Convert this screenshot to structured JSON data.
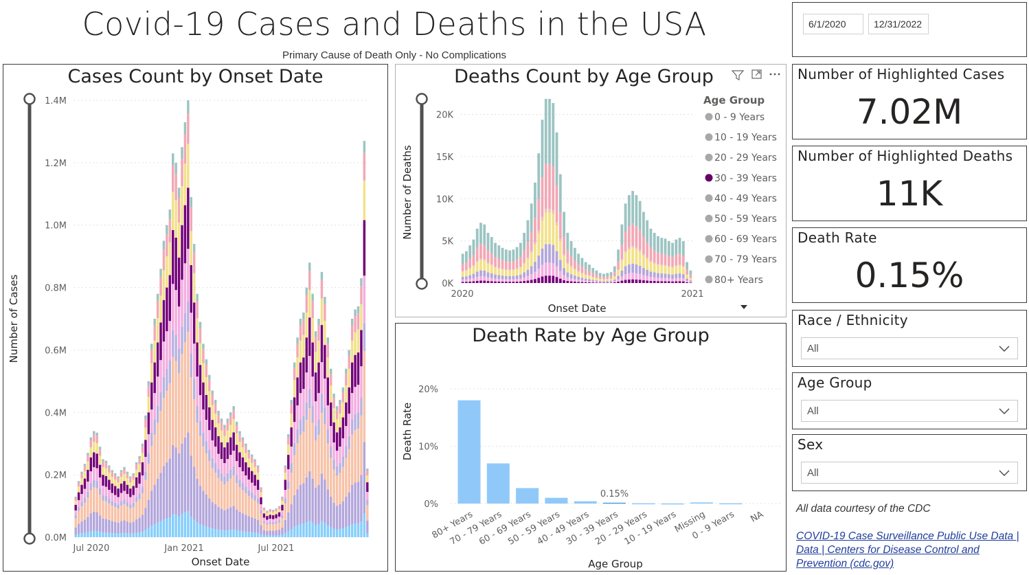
{
  "header": {
    "title": "Covid-19 Cases and Deaths in the USA",
    "subtitle": "Primary Cause of Death Only - No Complications"
  },
  "date_range": {
    "start": "6/1/2020",
    "end": "12/31/2022"
  },
  "cards": [
    {
      "label": "Number of Highlighted Cases",
      "value": "7.02M"
    },
    {
      "label": "Number of Highlighted Deaths",
      "value": "11K"
    },
    {
      "label": "Death Rate",
      "value": "0.15%"
    }
  ],
  "filters": [
    {
      "label": "Race / Ethnicity",
      "value": "All"
    },
    {
      "label": "Age Group",
      "value": "All"
    },
    {
      "label": "Sex",
      "value": "All"
    }
  ],
  "footer": {
    "credit": "All data courtesy of the CDC",
    "link_text": "COVID-19 Case Surveillance Public Use Data | Data | Centers for Disease Control and Prevention (cdc.gov)"
  },
  "icons": [
    "filter-icon",
    "focus-mode-icon",
    "more-options-icon",
    "chevron-down-icon",
    "drill-down-arrow-icon"
  ],
  "colors": {
    "c80": "#87cefa",
    "c70": "#b3a6dc",
    "c60": "#f7c2a8",
    "c50": "#b8b3e0",
    "c40": "#f4aee0",
    "c30": "#73007a",
    "c20": "#f2e189",
    "c10": "#f2a8b5",
    "c0": "#9cc4c2",
    "rate_bar": "#90c9f9",
    "highlight": "#660066",
    "legend_dot": "#a8a8a8"
  },
  "chart_data": [
    {
      "type": "bar",
      "stacked": true,
      "title": "Cases Count by Onset Date",
      "xlabel": "Onset Date",
      "ylabel": "Number of Cases",
      "x_start": "2020-04",
      "x_end": "2022-01",
      "xticks": [
        "Jul 2020",
        "Jan 2021",
        "Jul 2021"
      ],
      "ylim": [
        0,
        1400000
      ],
      "yticks": [
        "0.0M",
        "0.2M",
        "0.4M",
        "0.6M",
        "0.8M",
        "1.0M",
        "1.2M",
        "1.4M"
      ],
      "totals": [
        130000,
        180000,
        210000,
        235000,
        270000,
        320000,
        340000,
        335000,
        290000,
        250000,
        245000,
        230000,
        215000,
        205000,
        195000,
        215000,
        225000,
        210000,
        195000,
        205000,
        240000,
        260000,
        300000,
        390000,
        500000,
        620000,
        700000,
        780000,
        860000,
        950000,
        1000000,
        1050000,
        1230000,
        1200000,
        1120000,
        1250000,
        1330000,
        1400000,
        1090000,
        940000,
        780000,
        690000,
        620000,
        570000,
        520000,
        470000,
        440000,
        405000,
        380000,
        360000,
        380000,
        400000,
        420000,
        370000,
        340000,
        320000,
        300000,
        280000,
        265000,
        250000,
        230000,
        160000,
        95000,
        85000,
        90000,
        88000,
        92000,
        100000,
        130000,
        230000,
        330000,
        440000,
        560000,
        640000,
        700000,
        720000,
        800000,
        880000,
        780000,
        660000,
        700000,
        850000,
        770000,
        640000,
        540000,
        460000,
        420000,
        440000,
        480000,
        540000,
        600000,
        700000,
        730000,
        740000,
        830000,
        1270000,
        220000
      ],
      "highlight_series": "30 - 39 Years",
      "series_order": [
        "80+ Years",
        "70 - 79 Years",
        "60 - 69 Years",
        "50 - 59 Years",
        "40 - 49 Years",
        "30 - 39 Years",
        "20 - 29 Years",
        "10 - 19 Years",
        "0 - 9 Years"
      ],
      "share": [
        0.06,
        0.18,
        0.23,
        0.07,
        0.12,
        0.14,
        0.1,
        0.07,
        0.03
      ]
    },
    {
      "type": "bar",
      "stacked": true,
      "title": "Deaths Count by Age Group",
      "xlabel": "Onset Date",
      "ylabel": "Number of Deaths",
      "x_start": "2020",
      "x_end": "2021",
      "xticks": [
        "2020",
        "2021"
      ],
      "ylim": [
        0,
        22000
      ],
      "yticks": [
        "0K",
        "5K",
        "10K",
        "15K",
        "20K"
      ],
      "legend_title": "Age Group",
      "legend": [
        "0 - 9 Years",
        "10 - 19 Years",
        "20 - 29 Years",
        "30 - 39 Years",
        "40 - 49 Years",
        "50 - 59 Years",
        "60 - 69 Years",
        "70 - 79 Years",
        "80+ Years"
      ],
      "legend_placement": "right",
      "highlight_series": "30 - 39 Years",
      "totals": [
        3500,
        3800,
        4500,
        5200,
        6500,
        7200,
        7000,
        6000,
        5500,
        4800,
        4500,
        4200,
        4000,
        3900,
        4000,
        4300,
        4800,
        6000,
        7500,
        9500,
        12000,
        15500,
        19500,
        22000,
        22000,
        21500,
        18000,
        13000,
        8500,
        6000,
        5000,
        4200,
        3500,
        3000,
        2500,
        2200,
        1800,
        1500,
        1200,
        1100,
        1200,
        1300,
        2000,
        4000,
        7000,
        9500,
        10500,
        11000,
        10500,
        9800,
        8500,
        7500,
        6500,
        6000,
        5600,
        5400,
        5300,
        5000,
        4800,
        5200,
        5400,
        5000,
        2500,
        1500
      ],
      "share": [
        0.001,
        0.002,
        0.02,
        0.04,
        0.07,
        0.1,
        0.17,
        0.24,
        0.35
      ]
    },
    {
      "type": "bar",
      "title": "Death Rate by Age Group",
      "xlabel": "Age Group",
      "ylabel": "Death Rate",
      "categories": [
        "80+ Years",
        "70 - 79 Years",
        "60 - 69 Years",
        "50 - 59 Years",
        "40 - 49 Years",
        "30 - 39 Years",
        "20 - 29 Years",
        "10 - 19 Years",
        "Missing",
        "0 - 9 Years",
        "NA"
      ],
      "values": [
        18.0,
        7.0,
        2.7,
        1.0,
        0.4,
        0.15,
        0.05,
        0.02,
        0.2,
        0.05,
        0.0
      ],
      "highlight_category": "30 - 39 Years",
      "highlight_label": "0.15%",
      "ylim": [
        0,
        20
      ],
      "yticks": [
        "0%",
        "10%",
        "20%"
      ]
    }
  ]
}
